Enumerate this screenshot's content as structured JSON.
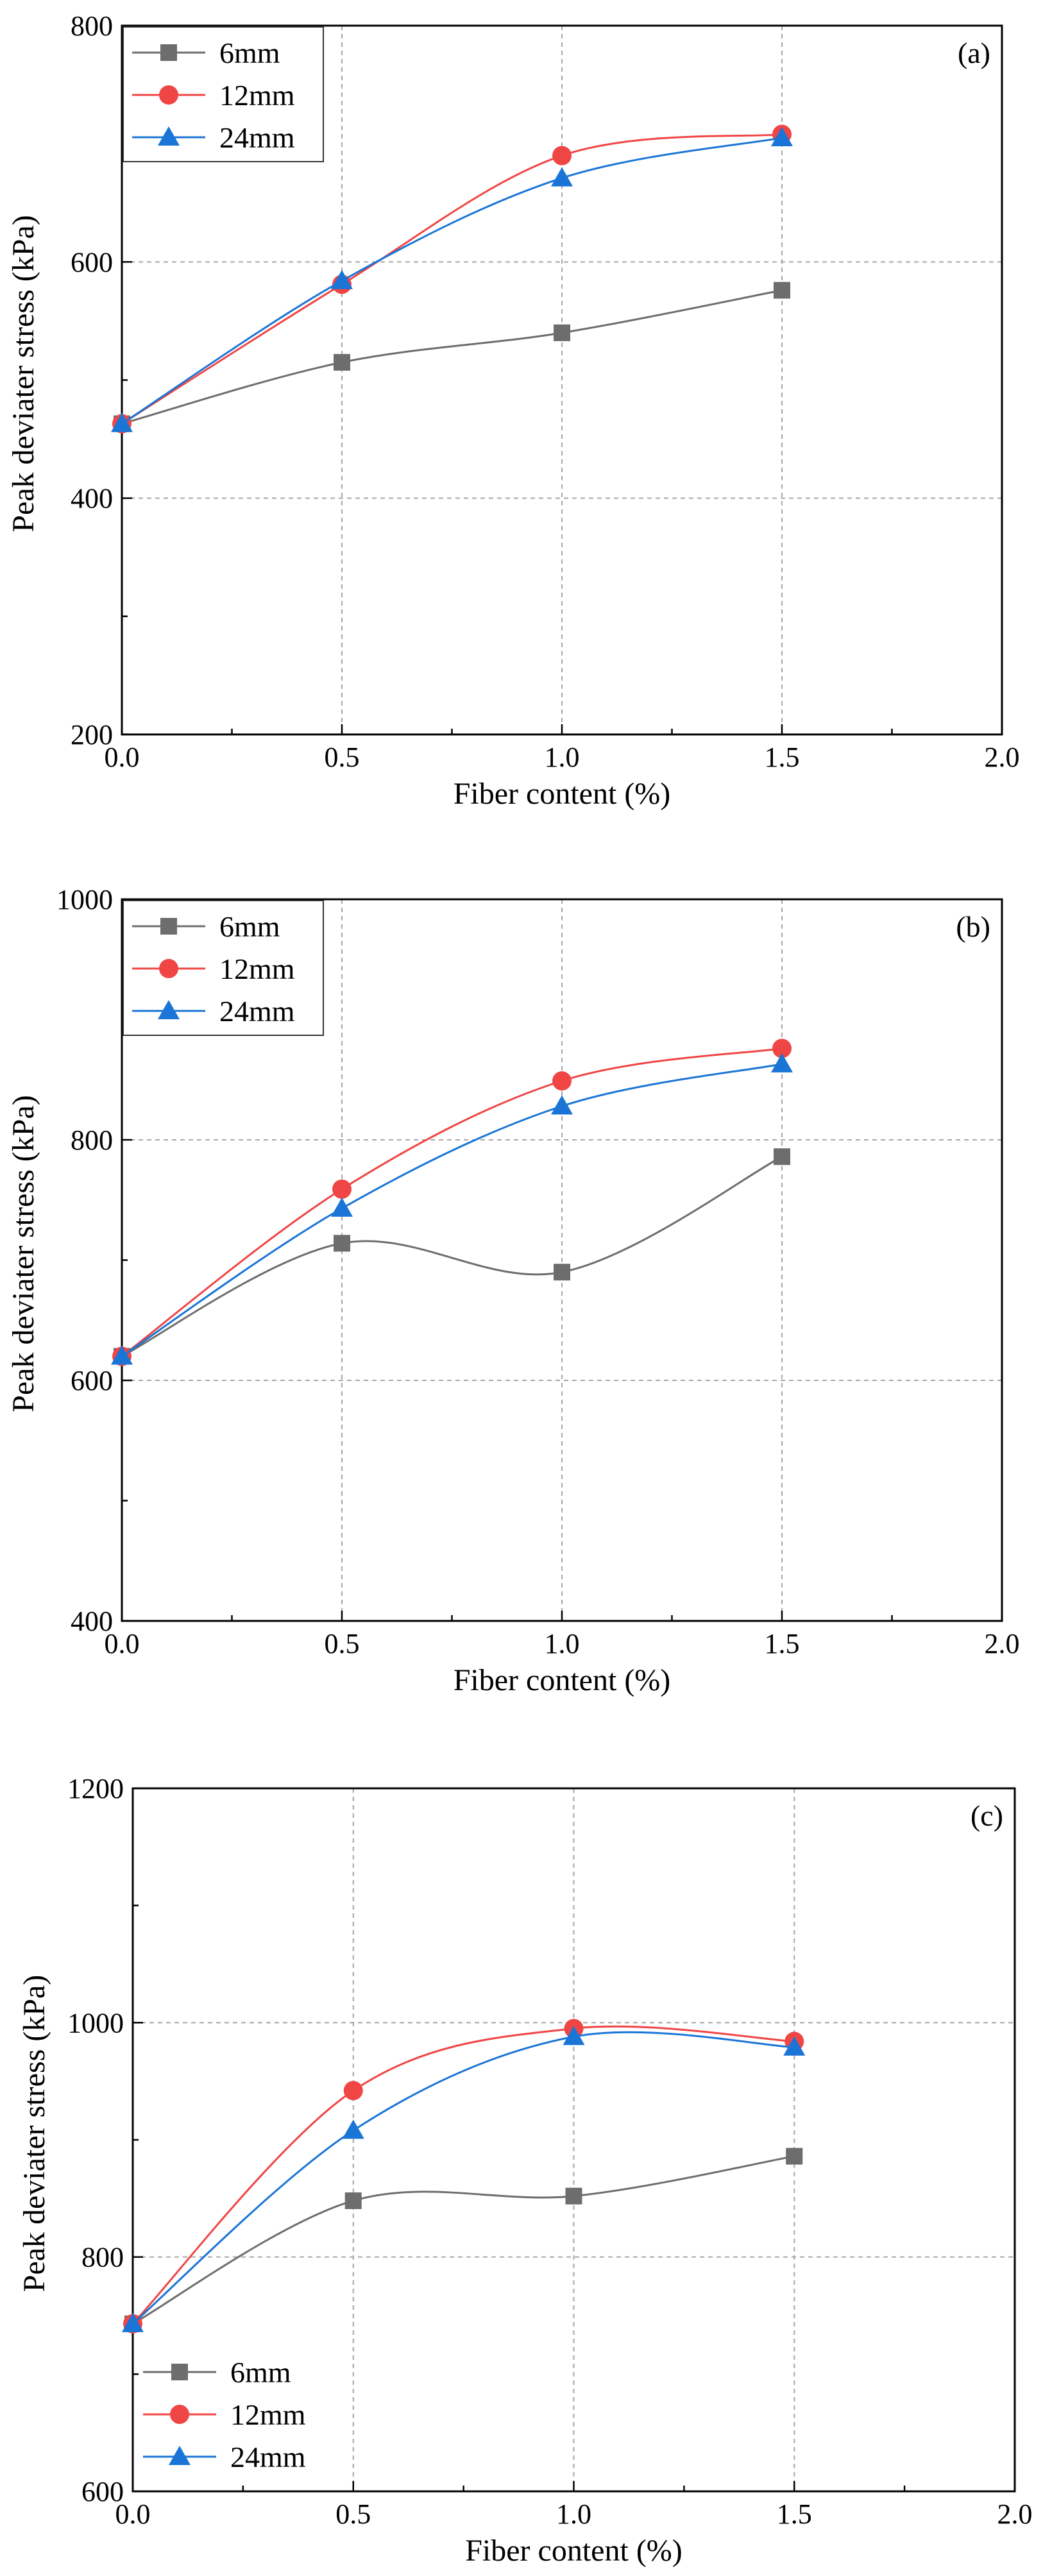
{
  "chart_data": [
    {
      "type": "line",
      "panel_label": "(a)",
      "xlabel": "Fiber content (%)",
      "ylabel": "Peak deviater stress (kPa)",
      "x": [
        0.0,
        0.5,
        1.0,
        1.5
      ],
      "xlim": [
        0.0,
        2.0
      ],
      "ylim": [
        200,
        800
      ],
      "xticks": [
        "0.0",
        "0.5",
        "1.0",
        "1.5",
        "2.0"
      ],
      "xtick_values": [
        0.0,
        0.5,
        1.0,
        1.5,
        2.0
      ],
      "yticks": [
        "200",
        "400",
        "600",
        "800"
      ],
      "ytick_values": [
        200,
        400,
        600,
        800
      ],
      "grid": true,
      "legend_position": "top-left",
      "series": [
        {
          "name": "6mm",
          "values": [
            463,
            515,
            540,
            576
          ],
          "color": "#6d6d6d",
          "marker": "square"
        },
        {
          "name": "12mm",
          "values": [
            463,
            581,
            690,
            708
          ],
          "color": "#f04545",
          "marker": "circle"
        },
        {
          "name": "24mm",
          "values": [
            463,
            584,
            671,
            705
          ],
          "color": "#1a75d6",
          "marker": "triangle"
        }
      ]
    },
    {
      "type": "line",
      "panel_label": "(b)",
      "xlabel": "Fiber content (%)",
      "ylabel": "Peak deviater stress (kPa)",
      "x": [
        0.0,
        0.5,
        1.0,
        1.5
      ],
      "xlim": [
        0.0,
        2.0
      ],
      "ylim": [
        400,
        1000
      ],
      "xticks": [
        "0.0",
        "0.5",
        "1.0",
        "1.5",
        "2.0"
      ],
      "xtick_values": [
        0.0,
        0.5,
        1.0,
        1.5,
        2.0
      ],
      "yticks": [
        "400",
        "600",
        "800",
        "1000"
      ],
      "ytick_values": [
        400,
        600,
        800,
        1000
      ],
      "grid": true,
      "legend_position": "top-left",
      "series": [
        {
          "name": "6mm",
          "values": [
            620,
            714,
            690,
            786
          ],
          "color": "#6d6d6d",
          "marker": "square"
        },
        {
          "name": "12mm",
          "values": [
            620,
            759,
            849,
            876
          ],
          "color": "#f04545",
          "marker": "circle"
        },
        {
          "name": "24mm",
          "values": [
            620,
            743,
            828,
            863
          ],
          "color": "#1a75d6",
          "marker": "triangle"
        }
      ]
    },
    {
      "type": "line",
      "panel_label": "(c)",
      "xlabel": "Fiber content (%)",
      "ylabel": "Peak deviater stress (kPa)",
      "x": [
        0.0,
        0.5,
        1.0,
        1.5
      ],
      "xlim": [
        0.0,
        2.0
      ],
      "ylim": [
        600,
        1200
      ],
      "xticks": [
        "0.0",
        "0.5",
        "1.0",
        "1.5",
        "2.0"
      ],
      "xtick_values": [
        0.0,
        0.5,
        1.0,
        1.5,
        2.0
      ],
      "yticks": [
        "600",
        "800",
        "1000",
        "1200"
      ],
      "ytick_values": [
        600,
        800,
        1000,
        1200
      ],
      "grid": true,
      "legend_position": "bottom-left",
      "series": [
        {
          "name": "6mm",
          "values": [
            743,
            848,
            852,
            886
          ],
          "color": "#6d6d6d",
          "marker": "square"
        },
        {
          "name": "12mm",
          "values": [
            743,
            942,
            995,
            984
          ],
          "color": "#f04545",
          "marker": "circle"
        },
        {
          "name": "24mm",
          "values": [
            743,
            908,
            988,
            979
          ],
          "color": "#1a75d6",
          "marker": "triangle"
        }
      ]
    }
  ]
}
